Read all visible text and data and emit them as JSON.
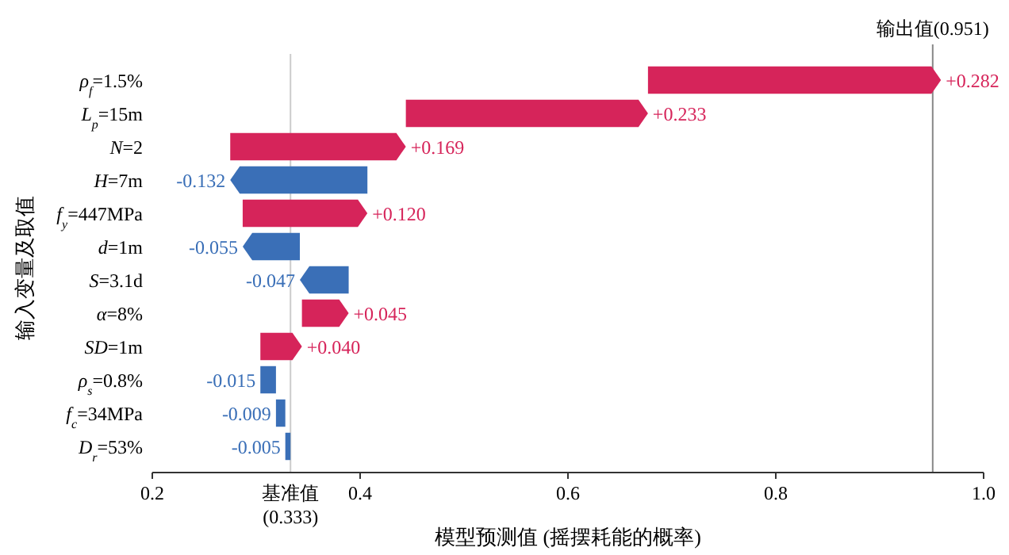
{
  "chart_data": {
    "type": "bar",
    "orientation": "horizontal",
    "categories": [
      "ρ$_{f}$=1.5%",
      "L$_{p}$=15m",
      "N=2",
      "H=7m",
      "f$_{y}$=447MPa",
      "d=1m",
      "S=3.1d",
      "α=8%",
      "SD=1m",
      "ρ$_{s}$=0.8%",
      "f$_{c}$=34MPa",
      "D$_{r}$=53%"
    ],
    "values": [
      0.282,
      0.233,
      0.169,
      -0.132,
      0.12,
      -0.055,
      -0.047,
      0.045,
      0.04,
      -0.015,
      -0.009,
      -0.005
    ],
    "base": [
      0.677,
      0.444,
      0.275,
      0.407,
      0.287,
      0.342,
      0.389,
      0.344,
      0.304,
      0.319,
      0.328,
      0.333
    ],
    "colors": [
      "#d6245a",
      "#d6245a",
      "#d6245a",
      "#3a6fb7",
      "#d6245a",
      "#3a6fb7",
      "#3a6fb7",
      "#d6245a",
      "#d6245a",
      "#3a6fb7",
      "#3a6fb7",
      "#3a6fb7"
    ],
    "value_labels": [
      "+0.282",
      "+0.233",
      "+0.169",
      "-0.132",
      "+0.120",
      "-0.055",
      "-0.047",
      "+0.045",
      "+0.040",
      "-0.015",
      "-0.009",
      "-0.005"
    ],
    "xlim": [
      0.2,
      1.0
    ],
    "xticks": [
      0.2,
      0.4,
      0.6,
      0.8,
      {
        "value": 1.0,
        "label": "1.0"
      }
    ],
    "xlabel": "模型预测值 (摇摆耗能的概率)",
    "ylabel": "输入变量及取值",
    "ref_lines": [
      {
        "axis": "x",
        "value": 0.951,
        "label": "输出值(0.951)",
        "color": "#888888"
      },
      {
        "axis": "x",
        "value": 0.333,
        "label": "基准值\n(0.333)",
        "color": "#cccccc"
      }
    ],
    "grid": false
  }
}
